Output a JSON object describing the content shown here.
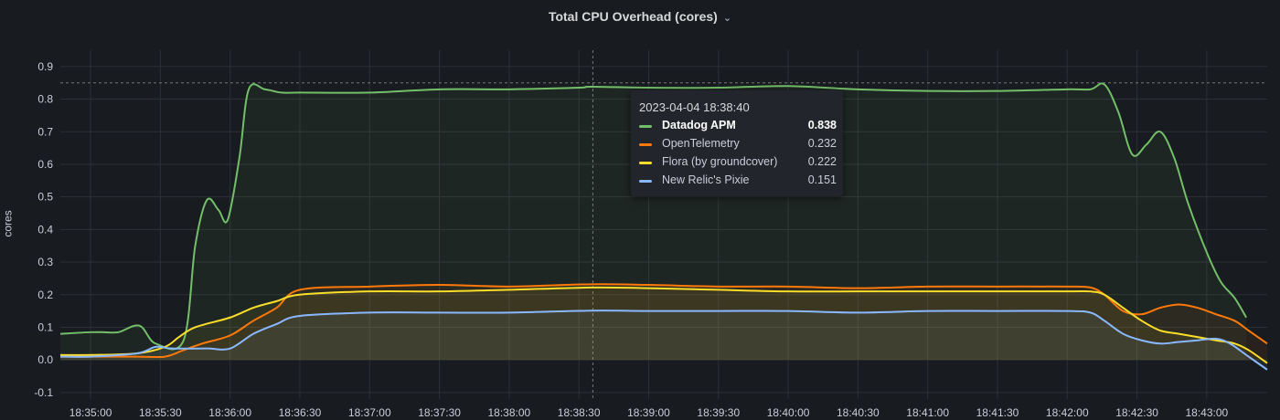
{
  "panel": {
    "title": "Total CPU Overhead (cores)",
    "chevron_icon": "chevron-down-icon"
  },
  "chart_data": {
    "type": "line",
    "ylabel": "cores",
    "ylim": [
      -0.12,
      0.95
    ],
    "yticks": [
      -0.1,
      0.0,
      0.1,
      0.2,
      0.3,
      0.4,
      0.5,
      0.6,
      0.7,
      0.8,
      0.9
    ],
    "xticks": [
      "18:35:00",
      "18:35:30",
      "18:36:00",
      "18:36:30",
      "18:37:00",
      "18:37:30",
      "18:38:00",
      "18:38:30",
      "18:39:00",
      "18:39:30",
      "18:40:00",
      "18:40:30",
      "18:41:00",
      "18:41:30",
      "18:42:00",
      "18:42:30",
      "18:43:00"
    ],
    "xlim": [
      "18:34:47",
      "18:43:26"
    ],
    "grid": true,
    "threshold_line": 0.85,
    "hover_time": "18:38:36",
    "series": [
      {
        "name": "Datadog APM",
        "color": "#73bf69",
        "x": [
          "18:34:47",
          "18:35:00",
          "18:35:06",
          "18:35:12",
          "18:35:21",
          "18:35:28",
          "18:35:40",
          "18:35:45",
          "18:35:50",
          "18:35:55",
          "18:35:59",
          "18:36:04",
          "18:36:08",
          "18:36:15",
          "18:36:22",
          "18:36:30",
          "18:37:00",
          "18:37:30",
          "18:38:00",
          "18:38:30",
          "18:38:35",
          "18:39:00",
          "18:39:30",
          "18:40:00",
          "18:40:30",
          "18:41:00",
          "18:41:30",
          "18:42:00",
          "18:42:10",
          "18:42:16",
          "18:42:22",
          "18:42:28",
          "18:42:34",
          "18:42:40",
          "18:42:46",
          "18:42:52",
          "18:43:00",
          "18:43:06",
          "18:43:12",
          "18:43:17"
        ],
        "values": [
          0.08,
          0.085,
          0.085,
          0.085,
          0.105,
          0.05,
          0.06,
          0.35,
          0.49,
          0.46,
          0.43,
          0.62,
          0.83,
          0.83,
          0.82,
          0.82,
          0.82,
          0.83,
          0.83,
          0.835,
          0.838,
          0.835,
          0.835,
          0.84,
          0.83,
          0.825,
          0.825,
          0.83,
          0.83,
          0.845,
          0.76,
          0.63,
          0.66,
          0.7,
          0.62,
          0.48,
          0.33,
          0.24,
          0.19,
          0.13
        ]
      },
      {
        "name": "OpenTelemetry",
        "color": "#ff780a",
        "x": [
          "18:34:47",
          "18:35:00",
          "18:35:20",
          "18:35:32",
          "18:35:40",
          "18:35:48",
          "18:36:00",
          "18:36:10",
          "18:36:20",
          "18:36:30",
          "18:37:00",
          "18:37:30",
          "18:38:00",
          "18:38:35",
          "18:39:00",
          "18:39:30",
          "18:40:00",
          "18:40:30",
          "18:41:00",
          "18:41:30",
          "18:42:00",
          "18:42:10",
          "18:42:16",
          "18:42:24",
          "18:42:32",
          "18:42:40",
          "18:42:48",
          "18:42:56",
          "18:43:04",
          "18:43:12",
          "18:43:18",
          "18:43:26"
        ],
        "values": [
          0.01,
          0.01,
          0.01,
          0.01,
          0.03,
          0.05,
          0.075,
          0.12,
          0.16,
          0.215,
          0.225,
          0.23,
          0.225,
          0.232,
          0.23,
          0.225,
          0.225,
          0.22,
          0.225,
          0.225,
          0.225,
          0.222,
          0.2,
          0.15,
          0.14,
          0.16,
          0.17,
          0.16,
          0.14,
          0.12,
          0.09,
          0.05
        ]
      },
      {
        "name": "Flora (by groundcover)",
        "color": "#fade2a",
        "x": [
          "18:34:47",
          "18:35:00",
          "18:35:20",
          "18:35:32",
          "18:35:38",
          "18:35:45",
          "18:36:00",
          "18:36:10",
          "18:36:20",
          "18:36:30",
          "18:37:00",
          "18:37:30",
          "18:38:00",
          "18:38:35",
          "18:39:00",
          "18:39:30",
          "18:40:00",
          "18:40:30",
          "18:41:00",
          "18:41:30",
          "18:42:00",
          "18:42:10",
          "18:42:16",
          "18:42:24",
          "18:42:32",
          "18:42:40",
          "18:42:48",
          "18:42:56",
          "18:43:04",
          "18:43:12",
          "18:43:18",
          "18:43:26"
        ],
        "values": [
          0.015,
          0.015,
          0.02,
          0.04,
          0.07,
          0.1,
          0.13,
          0.16,
          0.18,
          0.2,
          0.21,
          0.21,
          0.215,
          0.222,
          0.22,
          0.215,
          0.21,
          0.21,
          0.21,
          0.21,
          0.21,
          0.21,
          0.2,
          0.16,
          0.12,
          0.09,
          0.08,
          0.07,
          0.06,
          0.05,
          0.03,
          -0.01
        ]
      },
      {
        "name": "New Relic's Pixie",
        "color": "#8ab8ff",
        "x": [
          "18:34:47",
          "18:35:00",
          "18:35:20",
          "18:35:28",
          "18:35:35",
          "18:35:50",
          "18:36:00",
          "18:36:10",
          "18:36:20",
          "18:36:30",
          "18:37:00",
          "18:37:30",
          "18:38:00",
          "18:38:35",
          "18:39:00",
          "18:39:30",
          "18:40:00",
          "18:40:30",
          "18:41:00",
          "18:41:30",
          "18:42:00",
          "18:42:10",
          "18:42:16",
          "18:42:24",
          "18:42:32",
          "18:42:40",
          "18:42:48",
          "18:42:56",
          "18:43:04",
          "18:43:10",
          "18:43:18",
          "18:43:26"
        ],
        "values": [
          0.01,
          0.01,
          0.02,
          0.04,
          0.035,
          0.035,
          0.035,
          0.08,
          0.11,
          0.135,
          0.145,
          0.145,
          0.145,
          0.151,
          0.15,
          0.15,
          0.15,
          0.145,
          0.15,
          0.15,
          0.15,
          0.145,
          0.12,
          0.08,
          0.06,
          0.05,
          0.055,
          0.06,
          0.065,
          0.05,
          0.01,
          -0.03
        ]
      }
    ],
    "tooltip": {
      "time": "2023-04-04 18:38:40",
      "active_series": "Datadog APM",
      "rows": [
        {
          "name": "Datadog APM",
          "value": "0.838",
          "color": "#73bf69"
        },
        {
          "name": "OpenTelemetry",
          "value": "0.232",
          "color": "#ff780a"
        },
        {
          "name": "Flora (by groundcover)",
          "value": "0.222",
          "color": "#fade2a"
        },
        {
          "name": "New Relic's Pixie",
          "value": "0.151",
          "color": "#8ab8ff"
        }
      ]
    }
  }
}
